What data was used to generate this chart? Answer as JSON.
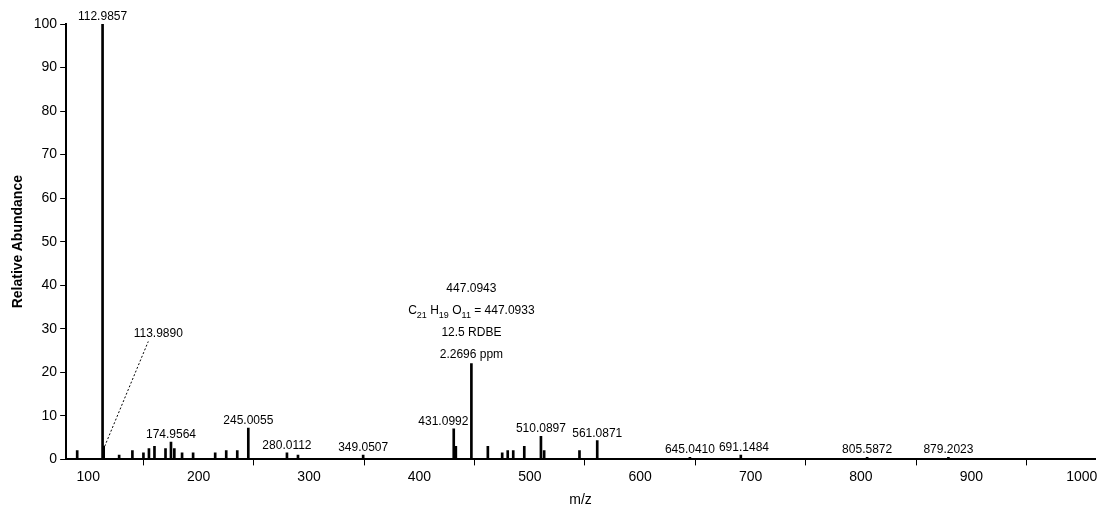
{
  "chart_data": {
    "type": "bar",
    "xlabel": "m/z",
    "ylabel": "Relative Abundance",
    "x": [
      90,
      112.9857,
      113.989,
      128,
      140,
      150,
      155,
      160,
      170,
      174.9564,
      178,
      185,
      195,
      215,
      225,
      235,
      245.0055,
      280.0112,
      290,
      349.0507,
      431.0992,
      433,
      447.0943,
      462,
      475,
      480,
      485,
      495,
      510.0897,
      513,
      545,
      561.0871,
      645.041,
      691.1484,
      805.5872,
      879.2023
    ],
    "values": [
      2,
      100,
      3,
      1,
      2,
      1.5,
      2.5,
      3,
      2.5,
      4,
      2.5,
      1.5,
      1.5,
      1.5,
      2,
      2,
      7.2,
      1.5,
      1,
      1,
      7,
      3,
      22,
      3,
      1.5,
      2,
      2,
      3,
      5.3,
      2,
      2,
      4.3,
      0.5,
      1,
      0.5,
      0.5
    ],
    "color": "#000000",
    "annotations": [
      {
        "text": "112.9857",
        "x": 112.9857,
        "y": 100
      },
      {
        "text": "113.9890",
        "x": 113.989,
        "y": 3
      },
      {
        "text": "174.9564",
        "x": 174.9564,
        "y": 4
      },
      {
        "text": "245.0055",
        "x": 245.0055,
        "y": 7.2
      },
      {
        "text": "280.0112",
        "x": 280.0112,
        "y": 1.5
      },
      {
        "text": "349.0507",
        "x": 349.0507,
        "y": 1
      },
      {
        "text": "431.0992",
        "x": 431.0992,
        "y": 7
      },
      "447.0943",
      "C$_{21}$ H$_{19}$ O$_{11}$ = 447.0933",
      "12.5 RDBE",
      "2.2696 ppm",
      {
        "text": "510.0897",
        "x": 510.0897,
        "y": 5.3
      },
      {
        "text": "561.0871",
        "x": 561.0871,
        "y": 4.3
      },
      {
        "text": "645.0410",
        "x": 645.041,
        "y": 0.5
      },
      {
        "text": "691.1484",
        "x": 691.1484,
        "y": 1
      },
      {
        "text": "805.5872",
        "x": 805.5872,
        "y": 0.5
      },
      {
        "text": "879.2023",
        "x": 879.2023,
        "y": 0.5
      }
    ],
    "xlim": [
      80,
      1012
    ],
    "xticks": [
      100,
      200,
      300,
      400,
      500,
      600,
      700,
      800,
      900,
      1000
    ],
    "ylim": [
      0,
      100
    ],
    "yticks": [
      0,
      10,
      20,
      30,
      40,
      50,
      60,
      70,
      80,
      90,
      100
    ],
    "grid": false,
    "legend": false
  }
}
